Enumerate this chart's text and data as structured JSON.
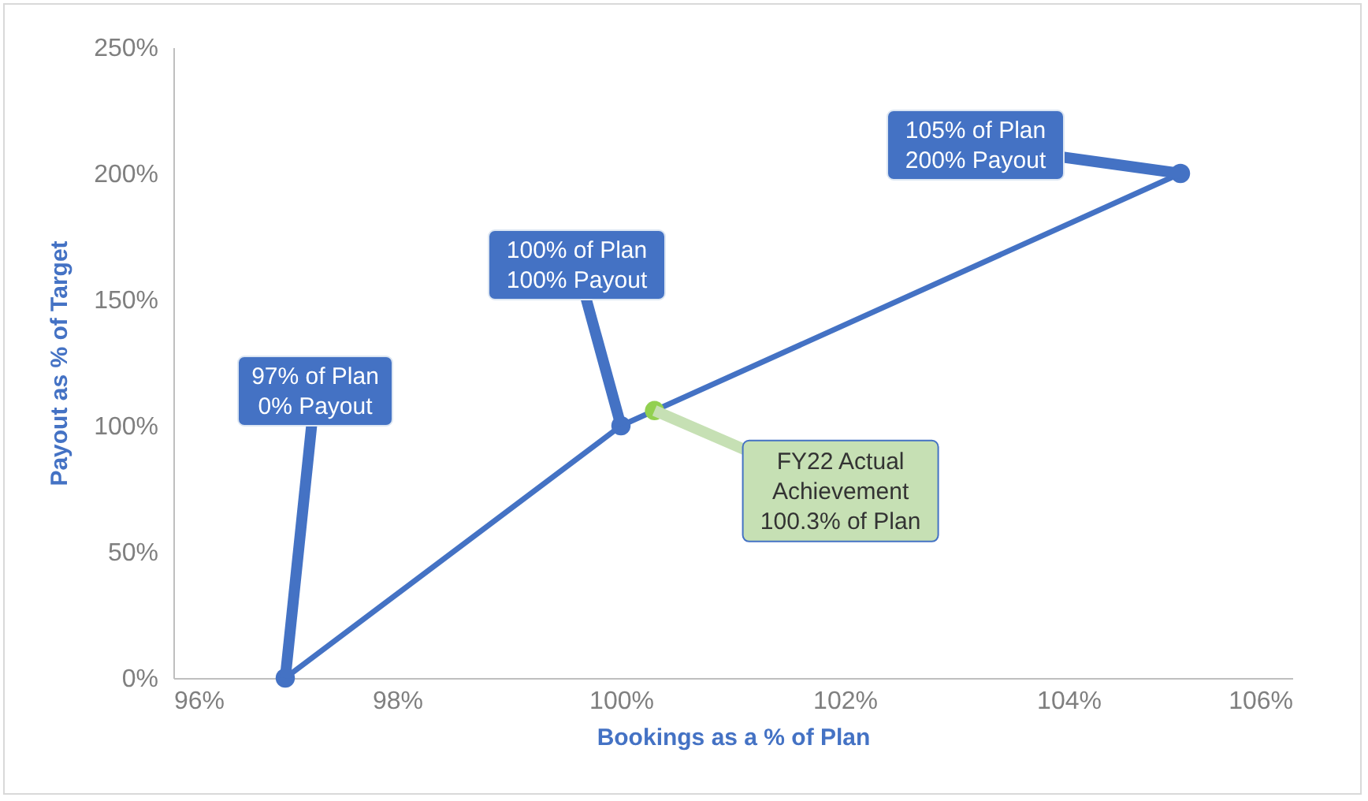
{
  "chart_data": {
    "type": "line",
    "xlabel": "Bookings as a % of Plan",
    "ylabel": "Payout as % of Target",
    "xlim": [
      96,
      106
    ],
    "xticks": [
      {
        "value": 96,
        "label": "96%"
      },
      {
        "value": 98,
        "label": "98%"
      },
      {
        "value": 100,
        "label": "100%"
      },
      {
        "value": 102,
        "label": "102%"
      },
      {
        "value": 104,
        "label": "104%"
      },
      {
        "value": 106,
        "label": "106%"
      }
    ],
    "ylim": [
      0,
      250
    ],
    "yticks": [
      {
        "value": 0,
        "label": "0%"
      },
      {
        "value": 50,
        "label": "50%"
      },
      {
        "value": 100,
        "label": "100%"
      },
      {
        "value": 150,
        "label": "150%"
      },
      {
        "value": 200,
        "label": "200%"
      },
      {
        "value": 250,
        "label": "250%"
      }
    ],
    "grid": false,
    "marker": "circle",
    "line_style": "solid",
    "series": [
      {
        "color": "#4472c4",
        "x": [
          97,
          100,
          105
        ],
        "values": [
          0,
          100,
          200
        ]
      },
      {
        "type": "scatter",
        "color": "#92d050",
        "x": [
          100.3
        ],
        "values": [
          106
        ]
      }
    ],
    "annotations": [
      {
        "text": "97% of Plan\n0% Payout",
        "x": 97,
        "y": 0
      },
      {
        "text": "100% of Plan\n100% Payout",
        "x": 100,
        "y": 100
      },
      {
        "text": "105% of Plan\n200% Payout",
        "x": 105,
        "y": 200
      },
      {
        "text": "FY22 Actual\nAchievement\n100.3% of Plan",
        "x": 100.3,
        "y": 106
      }
    ]
  }
}
